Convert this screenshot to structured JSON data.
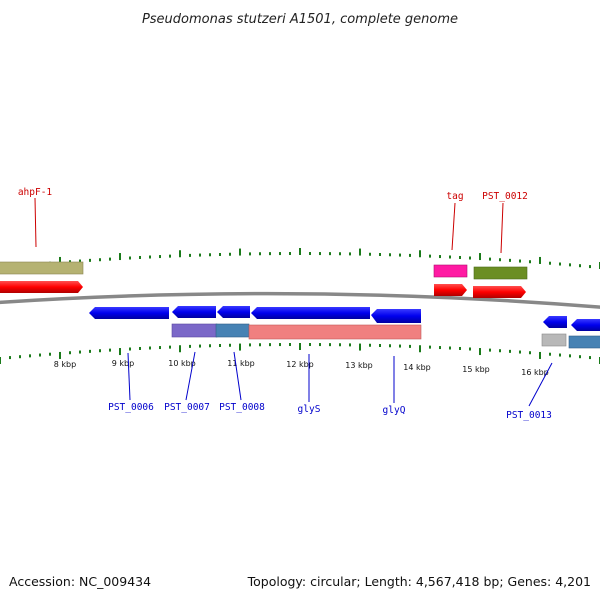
{
  "title": "Pseudomonas stutzeri A1501, complete genome",
  "accession": "Accession: NC_009434",
  "topology": "Topology: circular; Length: 4,567,418 bp; Genes: 4,201",
  "scale": {
    "tick_labels": [
      "8 kbp",
      "9 kbp",
      "10 kbp",
      "11 kbp",
      "12 kbp",
      "13 kbp",
      "14 kbp",
      "15 kbp",
      "16 kbp"
    ]
  },
  "genes_forward": [
    {
      "name": "ahpF-1",
      "color": "#ff0000"
    },
    {
      "name": "tag",
      "color": "#ff0000"
    },
    {
      "name": "PST_0012",
      "color": "#ff0000"
    }
  ],
  "genes_reverse": [
    {
      "name": "PST_0006",
      "color": "#0000ff"
    },
    {
      "name": "PST_0007",
      "color": "#0000ff"
    },
    {
      "name": "PST_0008",
      "color": "#0000ff"
    },
    {
      "name": "glyS",
      "color": "#0000ff"
    },
    {
      "name": "glyQ",
      "color": "#0000ff"
    },
    {
      "name": "PST_0013",
      "color": "#0000ff"
    }
  ],
  "colors": {
    "backbone": "#888888",
    "ticks": "#1a7a1a",
    "forward_cds": "#ff0000",
    "reverse_cds": "#0000ff",
    "olive_feature": "#b5b272",
    "green_feature": "#6b8e23",
    "pink_feature": "#ff1aa3",
    "purple_feature": "#7b68c8",
    "steel_feature": "#4682b4",
    "salmon_feature": "#f08080",
    "grey_feature": "#b8b8b8"
  }
}
